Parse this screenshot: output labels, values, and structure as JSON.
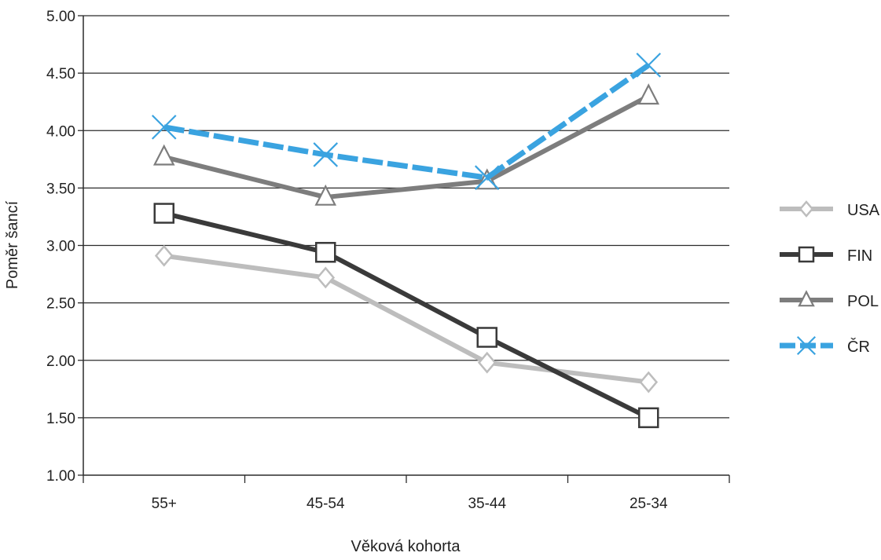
{
  "chart_data": {
    "type": "line",
    "title": "",
    "xlabel": "Věková kohorta",
    "ylabel": "Poměr šancí",
    "categories": [
      "55+",
      "45-54",
      "35-44",
      "25-34"
    ],
    "ylim": [
      1.0,
      5.0
    ],
    "yticks": [
      "1.00",
      "1.50",
      "2.00",
      "2.50",
      "3.00",
      "3.50",
      "4.00",
      "4.50",
      "5.00"
    ],
    "grid": true,
    "legend_position": "right",
    "series": [
      {
        "name": "USA",
        "values": [
          2.91,
          2.72,
          1.98,
          1.81
        ],
        "color": "#bdbdbd",
        "marker": "diamond",
        "dashed": false
      },
      {
        "name": "FIN",
        "values": [
          3.28,
          2.94,
          2.2,
          1.5
        ],
        "color": "#3a3a3a",
        "marker": "square",
        "dashed": false
      },
      {
        "name": "POL",
        "values": [
          3.77,
          3.42,
          3.56,
          4.3
        ],
        "color": "#7d7d7d",
        "marker": "triangle",
        "dashed": false
      },
      {
        "name": "ČR",
        "values": [
          4.03,
          3.79,
          3.59,
          4.57
        ],
        "color": "#3aa3e0",
        "marker": "x",
        "dashed": true
      }
    ]
  }
}
